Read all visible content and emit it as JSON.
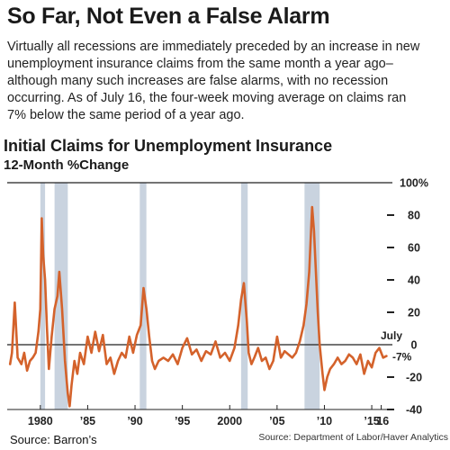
{
  "headline": "So Far, Not Even a False Alarm",
  "body_lines": [
    "Virtually all recessions are immediately preceded by an increase in new",
    "unemployment insurance claims from the same month a year ago–",
    "although many such increases are false alarms, with no recession",
    "occurring. As of July 16, the four-week moving average on claims ran",
    "7% below the same period of a year ago."
  ],
  "source_left": "Source: Barron’s",
  "chart_data": {
    "type": "line",
    "title": "Initial Claims for Unemployment Insurance",
    "subtitle": "12-Month %Change",
    "source": "Source: Department of Labor/Haver Analytics",
    "xlim": [
      1976.5,
      2016.8
    ],
    "ylim": [
      -40,
      100
    ],
    "y_ticks": [
      -40,
      -20,
      0,
      20,
      40,
      60,
      80,
      100
    ],
    "y_tick_labels": [
      "-40",
      "-20",
      "0",
      "20",
      "40",
      "60",
      "80",
      "100%"
    ],
    "x_ticks": [
      1980,
      1985,
      1990,
      1995,
      2000,
      2005,
      2010,
      2015,
      2016
    ],
    "x_tick_labels": [
      "1980",
      "’85",
      "’90",
      "’95",
      "2000",
      "’05",
      "’10",
      "’15",
      "’16"
    ],
    "recessions": [
      [
        1980.0,
        1980.5
      ],
      [
        1981.5,
        1982.9
      ],
      [
        1990.5,
        1991.2
      ],
      [
        2001.2,
        2001.9
      ],
      [
        2007.9,
        2009.5
      ]
    ],
    "annotations": [
      {
        "text": "July",
        "x": 2016.5,
        "y": 6
      },
      {
        "text": "-7%",
        "x": 2016.5,
        "y": -7
      }
    ],
    "series": [
      {
        "color": "#d4622b",
        "x": [
          1976.8,
          1977.0,
          1977.3,
          1977.6,
          1977.8,
          1978.0,
          1978.3,
          1978.6,
          1978.9,
          1979.2,
          1979.5,
          1979.8,
          1980.0,
          1980.15,
          1980.3,
          1980.5,
          1980.7,
          1980.9,
          1981.2,
          1981.5,
          1981.8,
          1982.0,
          1982.3,
          1982.6,
          1982.9,
          1983.1,
          1983.3,
          1983.6,
          1983.9,
          1984.2,
          1984.6,
          1985.0,
          1985.4,
          1985.8,
          1986.2,
          1986.6,
          1987.0,
          1987.4,
          1987.8,
          1988.2,
          1988.6,
          1989.0,
          1989.4,
          1989.8,
          1990.2,
          1990.6,
          1990.9,
          1991.2,
          1991.5,
          1991.8,
          1992.1,
          1992.5,
          1993.0,
          1993.5,
          1994.0,
          1994.5,
          1995.0,
          1995.5,
          1996.0,
          1996.5,
          1997.0,
          1997.5,
          1998.0,
          1998.5,
          1999.0,
          1999.5,
          2000.0,
          2000.5,
          2000.9,
          2001.2,
          2001.5,
          2001.8,
          2002.0,
          2002.3,
          2002.6,
          2003.0,
          2003.4,
          2003.8,
          2004.2,
          2004.6,
          2005.0,
          2005.4,
          2005.8,
          2006.2,
          2006.6,
          2007.0,
          2007.4,
          2007.8,
          2008.1,
          2008.4,
          2008.7,
          2008.9,
          2009.1,
          2009.3,
          2009.5,
          2009.8,
          2010.0,
          2010.3,
          2010.6,
          2011.0,
          2011.4,
          2011.8,
          2012.2,
          2012.6,
          2013.0,
          2013.4,
          2013.8,
          2014.2,
          2014.6,
          2015.0,
          2015.4,
          2015.8,
          2016.2,
          2016.55
        ],
        "y": [
          -12,
          -5,
          26,
          -8,
          -10,
          -12,
          -5,
          -16,
          -10,
          -8,
          -5,
          8,
          22,
          78,
          55,
          40,
          10,
          -15,
          5,
          22,
          30,
          45,
          22,
          -10,
          -30,
          -38,
          -25,
          -10,
          -18,
          -5,
          -12,
          5,
          -5,
          8,
          -4,
          6,
          -12,
          -8,
          -18,
          -10,
          -5,
          -8,
          5,
          -5,
          6,
          12,
          35,
          22,
          5,
          -10,
          -15,
          -10,
          -8,
          -10,
          -6,
          -12,
          -2,
          4,
          -6,
          -3,
          -10,
          -4,
          -6,
          2,
          -8,
          -5,
          -10,
          -2,
          12,
          28,
          38,
          15,
          -5,
          -12,
          -8,
          -2,
          -10,
          -8,
          -15,
          -10,
          5,
          -8,
          -4,
          -6,
          -8,
          -5,
          2,
          12,
          25,
          45,
          85,
          70,
          45,
          20,
          0,
          -18,
          -28,
          -20,
          -15,
          -12,
          -8,
          -12,
          -10,
          -6,
          -8,
          -12,
          -6,
          -18,
          -10,
          -14,
          -5,
          -2,
          -8,
          -7
        ]
      }
    ]
  }
}
